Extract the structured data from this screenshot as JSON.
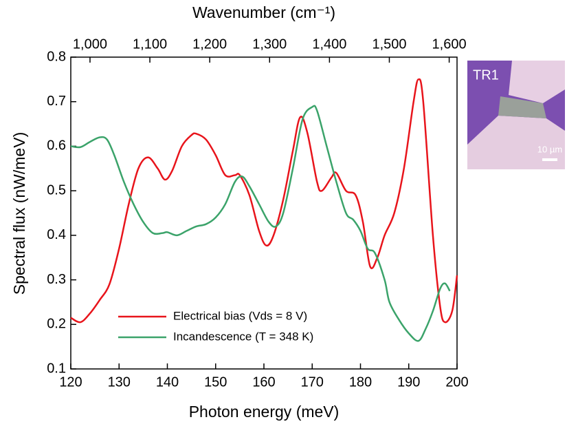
{
  "chart_data": {
    "type": "line",
    "xlabel": "Photon energy (meV)",
    "ylabel": "Spectral flux (nW/meV)",
    "x2label": "Wavenumber (cm⁻¹)",
    "xlim": [
      120,
      200
    ],
    "xticks": [
      120,
      130,
      140,
      150,
      160,
      170,
      180,
      190,
      200
    ],
    "ylim": [
      0.1,
      0.8
    ],
    "yticks": [
      0.1,
      0.2,
      0.3,
      0.4,
      0.5,
      0.6,
      0.7,
      0.8
    ],
    "x2lim": [
      967.9,
      1613.1
    ],
    "x2ticks": [
      {
        "value": 1000,
        "label": "1,000"
      },
      {
        "value": 1100,
        "label": "1,100"
      },
      {
        "value": 1200,
        "label": "1,200"
      },
      {
        "value": 1300,
        "label": "1,300"
      },
      {
        "value": 1400,
        "label": "1,400"
      },
      {
        "value": 1500,
        "label": "1,500"
      },
      {
        "value": 1600,
        "label": "1,600"
      }
    ],
    "series": [
      {
        "name": "Electrical bias (Vds = 8 V)",
        "color": "#e8141b",
        "x": [
          120,
          122,
          124,
          126,
          128,
          130,
          132,
          134,
          136,
          138,
          139.5,
          141,
          143,
          145,
          146,
          148,
          150,
          152,
          154,
          155,
          157,
          159,
          160.5,
          162,
          164,
          166,
          167.5,
          169,
          171,
          172,
          174,
          175,
          177,
          179,
          180.5,
          182,
          183.5,
          185,
          187,
          189,
          191,
          192,
          193,
          195,
          196.5,
          197.5,
          199,
          200
        ],
        "values": [
          0.215,
          0.205,
          0.225,
          0.255,
          0.29,
          0.37,
          0.47,
          0.55,
          0.575,
          0.55,
          0.525,
          0.545,
          0.6,
          0.625,
          0.628,
          0.615,
          0.58,
          0.535,
          0.535,
          0.535,
          0.49,
          0.41,
          0.377,
          0.4,
          0.48,
          0.59,
          0.665,
          0.63,
          0.52,
          0.5,
          0.53,
          0.54,
          0.5,
          0.49,
          0.43,
          0.33,
          0.35,
          0.4,
          0.45,
          0.55,
          0.7,
          0.75,
          0.7,
          0.4,
          0.24,
          0.205,
          0.23,
          0.31
        ]
      },
      {
        "name": "Incandescence (T = 348 K)",
        "color": "#3ba36a",
        "x": [
          120,
          122,
          124,
          126,
          127.5,
          129,
          131,
          133,
          135,
          137,
          139,
          140,
          142,
          144,
          146,
          148,
          150,
          152,
          154,
          155.5,
          157,
          159,
          161,
          162.5,
          164,
          166,
          168,
          170,
          171,
          173,
          175,
          177,
          178.5,
          180,
          181.5,
          183,
          185,
          186,
          188,
          190,
          192,
          193.5,
          195,
          196.5,
          197.5,
          198.5
        ],
        "values": [
          0.6,
          0.598,
          0.61,
          0.62,
          0.615,
          0.58,
          0.52,
          0.47,
          0.43,
          0.405,
          0.405,
          0.407,
          0.4,
          0.41,
          0.42,
          0.425,
          0.44,
          0.47,
          0.52,
          0.532,
          0.51,
          0.47,
          0.43,
          0.42,
          0.45,
          0.55,
          0.66,
          0.688,
          0.68,
          0.6,
          0.52,
          0.45,
          0.435,
          0.41,
          0.37,
          0.36,
          0.3,
          0.25,
          0.21,
          0.18,
          0.163,
          0.19,
          0.23,
          0.28,
          0.292,
          0.275
        ]
      }
    ],
    "inset": {
      "label": "TR1",
      "scale_label": "10 µm"
    }
  }
}
